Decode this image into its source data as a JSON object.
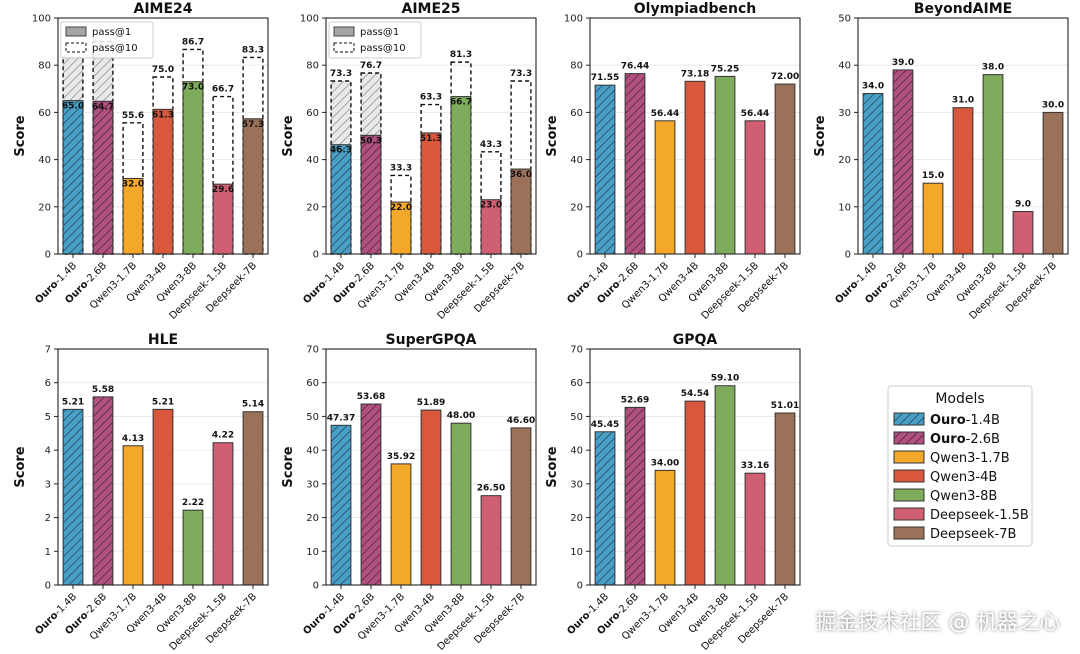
{
  "colors": {
    "Ouro-1.4B": "#4a9fc4",
    "Ouro-2.6B": "#b0507e",
    "Qwen3-1.7B": "#f4a82a",
    "Qwen3-4B": "#d9573d",
    "Qwen3-8B": "#7fac5c",
    "Deepseek-1.5B": "#d15f73",
    "Deepseek-7B": "#9c715a"
  },
  "categories": [
    "Ouro-1.4B",
    "Ouro-2.6B",
    "Qwen3-1.7B",
    "Qwen3-4B",
    "Qwen3-8B",
    "Deepseek-1.5B",
    "Deepseek-7B"
  ],
  "legend": {
    "title": "Models",
    "items": [
      {
        "bold": "Ouro",
        "rest": "-1.4B",
        "hatch": true
      },
      {
        "bold": "Ouro",
        "rest": "-2.6B",
        "hatch": true
      },
      {
        "bold": "",
        "rest": "Qwen3-1.7B",
        "hatch": false
      },
      {
        "bold": "",
        "rest": "Qwen3-4B",
        "hatch": false
      },
      {
        "bold": "",
        "rest": "Qwen3-8B",
        "hatch": false
      },
      {
        "bold": "",
        "rest": "Deepseek-1.5B",
        "hatch": false
      },
      {
        "bold": "",
        "rest": "Deepseek-7B",
        "hatch": false
      }
    ]
  },
  "pass_legend": [
    "pass@1",
    "pass@10"
  ],
  "watermark": "掘金技术社区 @ 机器之心",
  "chart_data": [
    {
      "type": "bar",
      "title": "AIME24",
      "ylabel": "Score",
      "ylim": [
        0,
        100
      ],
      "yticks": [
        0,
        20,
        40,
        60,
        80,
        100
      ],
      "series": [
        {
          "name": "pass@1",
          "values": [
            65.0,
            64.7,
            32.0,
            61.3,
            73.0,
            29.6,
            57.3
          ],
          "labels": [
            "65.0",
            "64.7",
            "32.0",
            "61.3",
            "73.0",
            "29.6",
            "57.3"
          ]
        },
        {
          "name": "pass@10",
          "values": [
            83.3,
            90.0,
            55.6,
            75.0,
            86.7,
            66.7,
            83.3
          ],
          "labels": [
            "",
            "",
            "55.6",
            "75.0",
            "86.7",
            "66.7",
            "83.3"
          ]
        }
      ]
    },
    {
      "type": "bar",
      "title": "AIME25",
      "ylabel": "Score",
      "ylim": [
        0,
        100
      ],
      "yticks": [
        0,
        20,
        40,
        60,
        80,
        100
      ],
      "series": [
        {
          "name": "pass@1",
          "values": [
            46.3,
            50.3,
            22.0,
            51.3,
            66.7,
            23.0,
            36.0
          ],
          "labels": [
            "46.3",
            "50.3",
            "22.0",
            "51.3",
            "66.7",
            "23.0",
            "36.0"
          ]
        },
        {
          "name": "pass@10",
          "values": [
            73.3,
            76.7,
            33.3,
            63.3,
            81.3,
            43.3,
            73.3
          ],
          "labels": [
            "73.3",
            "76.7",
            "33.3",
            "63.3",
            "81.3",
            "43.3",
            "73.3"
          ]
        }
      ]
    },
    {
      "type": "bar",
      "title": "Olympiadbench",
      "ylabel": "Score",
      "ylim": [
        0,
        100
      ],
      "yticks": [
        0,
        20,
        40,
        60,
        80,
        100
      ],
      "values": [
        71.55,
        76.44,
        56.44,
        73.18,
        75.25,
        56.44,
        72.0
      ],
      "labels": [
        "71.55",
        "76.44",
        "56.44",
        "73.18",
        "75.25",
        "56.44",
        "72.00"
      ]
    },
    {
      "type": "bar",
      "title": "BeyondAIME",
      "ylabel": "Score",
      "ylim": [
        0,
        50
      ],
      "yticks": [
        0,
        10,
        20,
        30,
        40,
        50
      ],
      "values": [
        34.0,
        39.0,
        15.0,
        31.0,
        38.0,
        9.0,
        30.0
      ],
      "labels": [
        "34.0",
        "39.0",
        "15.0",
        "31.0",
        "38.0",
        "9.0",
        "30.0"
      ]
    },
    {
      "type": "bar",
      "title": "HLE",
      "ylabel": "Score",
      "ylim": [
        0,
        7
      ],
      "yticks": [
        0,
        1,
        2,
        3,
        4,
        5,
        6,
        7
      ],
      "values": [
        5.21,
        5.58,
        4.13,
        5.21,
        2.22,
        4.22,
        5.14
      ],
      "labels": [
        "5.21",
        "5.58",
        "4.13",
        "5.21",
        "2.22",
        "4.22",
        "5.14"
      ]
    },
    {
      "type": "bar",
      "title": "SuperGPQA",
      "ylabel": "Score",
      "ylim": [
        0,
        70
      ],
      "yticks": [
        0,
        10,
        20,
        30,
        40,
        50,
        60,
        70
      ],
      "values": [
        47.37,
        53.68,
        35.92,
        51.89,
        48.0,
        26.5,
        46.6
      ],
      "labels": [
        "47.37",
        "53.68",
        "35.92",
        "51.89",
        "48.00",
        "26.50",
        "46.60"
      ]
    },
    {
      "type": "bar",
      "title": "GPQA",
      "ylabel": "Score",
      "ylim": [
        0,
        70
      ],
      "yticks": [
        0,
        10,
        20,
        30,
        40,
        50,
        60,
        70
      ],
      "values": [
        45.45,
        52.69,
        34.0,
        54.54,
        59.1,
        33.16,
        51.01
      ],
      "labels": [
        "45.45",
        "52.69",
        "34.00",
        "54.54",
        "59.10",
        "33.16",
        "51.01"
      ]
    }
  ]
}
